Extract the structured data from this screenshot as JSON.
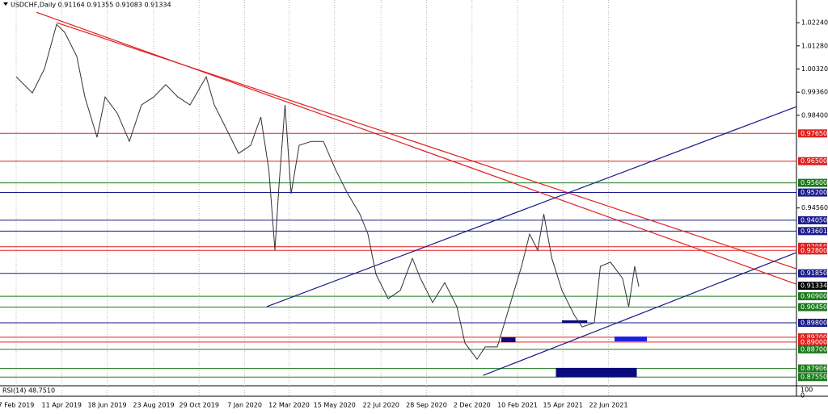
{
  "chart_data": {
    "type": "line",
    "title": "USDCHF,Daily  0.91164 0.91355 0.91083 0.91334",
    "series": [
      {
        "name": "USDCHF",
        "color": "#333333",
        "x": [
          0,
          16,
          28,
          40,
          48,
          60,
          68,
          80,
          88,
          100,
          112,
          124,
          136,
          148,
          160,
          172,
          188,
          196,
          208,
          220,
          232,
          242,
          250,
          256,
          260,
          266,
          272,
          280,
          292,
          304,
          316,
          328,
          340,
          348,
          356,
          368,
          380,
          392,
          400,
          412,
          424,
          436,
          444,
          456,
          464,
          476,
          488,
          500,
          508,
          516,
          522,
          530,
          540,
          552,
          560,
          572,
          578,
          588,
          600,
          606,
          612,
          616
        ],
        "values": [
          1.0,
          0.9933,
          1.0033,
          1.0217,
          1.0184,
          1.0084,
          0.9916,
          0.9749,
          0.9916,
          0.9849,
          0.9732,
          0.9883,
          0.9916,
          0.9967,
          0.9916,
          0.9883,
          1.0,
          0.9883,
          0.9783,
          0.9682,
          0.9716,
          0.9833,
          0.9615,
          0.9281,
          0.9548,
          0.9883,
          0.9515,
          0.9716,
          0.9732,
          0.9732,
          0.9615,
          0.9515,
          0.9431,
          0.9348,
          0.9181,
          0.908,
          0.9114,
          0.9247,
          0.9164,
          0.9064,
          0.9147,
          0.9047,
          0.8896,
          0.8829,
          0.888,
          0.888,
          0.9047,
          0.9214,
          0.9348,
          0.9281,
          0.9431,
          0.9247,
          0.9114,
          0.9013,
          0.8963,
          0.898,
          0.9214,
          0.9231,
          0.9164,
          0.9047,
          0.9214,
          0.913
        ]
      }
    ],
    "xlim": [
      -16,
      772
    ],
    "ylim": [
      0.8719,
      1.0318
    ],
    "xticks": [
      {
        "value": 0,
        "label": "7 Feb 2019"
      },
      {
        "value": 45,
        "label": "11 Apr 2019"
      },
      {
        "value": 90,
        "label": "18 Jun 2019"
      },
      {
        "value": 136,
        "label": "23 Aug 2019"
      },
      {
        "value": 181,
        "label": "29 Oct 2019"
      },
      {
        "value": 226,
        "label": "7 Jan 2020"
      },
      {
        "value": 270,
        "label": "12 Mar 2020"
      },
      {
        "value": 315,
        "label": "15 May 2020"
      },
      {
        "value": 361,
        "label": "22 Jul 2020"
      },
      {
        "value": 406,
        "label": "28 Sep 2020"
      },
      {
        "value": 451,
        "label": "2 Dec 2020"
      },
      {
        "value": 496,
        "label": "10 Feb 2021"
      },
      {
        "value": 541,
        "label": "15 Apr 2021"
      },
      {
        "value": 586,
        "label": "22 Jun 2021"
      }
    ],
    "yticks": [
      {
        "value": 1.0224,
        "label": "1.02240"
      },
      {
        "value": 1.0128,
        "label": "1.01280"
      },
      {
        "value": 1.0032,
        "label": "1.00320"
      },
      {
        "value": 0.9936,
        "label": "0.99360"
      },
      {
        "value": 0.984,
        "label": "0.98400"
      },
      {
        "value": 0.9456,
        "label": "0.94560"
      }
    ],
    "grid": true,
    "levels": [
      {
        "value": 0.9765,
        "label": "0.97650",
        "color": "#e02020"
      },
      {
        "value": 0.965,
        "label": "0.96500",
        "color": "#e02020"
      },
      {
        "value": 0.956,
        "label": "0.95600",
        "color": "#1a7a1a"
      },
      {
        "value": 0.952,
        "label": "0.95200",
        "color": "#1a1a8c"
      },
      {
        "value": 0.9405,
        "label": "0.94050",
        "color": "#1a1a8c"
      },
      {
        "value": 0.93601,
        "label": "0.93601",
        "color": "#1a1a8c"
      },
      {
        "value": 0.9295,
        "label": "0.92950",
        "color": "#e02020"
      },
      {
        "value": 0.928,
        "label": "0.92800",
        "color": "#e02020"
      },
      {
        "value": 0.9185,
        "label": "0.91850",
        "color": "#1a1a8c"
      },
      {
        "value": 0.909,
        "label": "0.90900",
        "color": "#1a7a1a"
      },
      {
        "value": 0.9045,
        "label": "0.90450",
        "color": "#1a7a1a"
      },
      {
        "value": 0.898,
        "label": "0.89800",
        "color": "#1a1a8c"
      },
      {
        "value": 0.892,
        "label": "0.89200",
        "color": "#e02020"
      },
      {
        "value": 0.89,
        "label": "0.89000",
        "color": "#e02020"
      },
      {
        "value": 0.887,
        "label": "0.88700",
        "color": "#1a7a1a"
      },
      {
        "value": 0.87906,
        "label": "0.87906",
        "color": "#1a7a1a"
      },
      {
        "value": 0.8755,
        "label": "0.87550",
        "color": "#1a7a1a"
      }
    ],
    "current_price": {
      "value": 0.91334,
      "label": "0.91334"
    },
    "trend_lines": [
      {
        "color": "#e02020",
        "x": [
          20,
          772
        ],
        "values": [
          1.0267,
          0.914
        ]
      },
      {
        "color": "#e02020",
        "x": [
          40,
          772
        ],
        "values": [
          1.0224,
          0.9204
        ]
      },
      {
        "color": "#1a1a8c",
        "x": [
          248,
          772
        ],
        "values": [
          0.9047,
          0.9876
        ]
      },
      {
        "color": "#1a1a8c",
        "x": [
          462,
          772
        ],
        "values": [
          0.8762,
          0.9271
        ]
      }
    ],
    "zones": [
      {
        "color": "#0a0a7a",
        "x": [
          534,
          614
        ],
        "values": [
          0.8793,
          0.8755
        ]
      },
      {
        "color": "#2020e0",
        "x": [
          592,
          624
        ],
        "values": [
          0.8923,
          0.8903
        ]
      },
      {
        "color": "#0a0a7a",
        "x": [
          480,
          494
        ],
        "values": [
          0.892,
          0.89
        ]
      },
      {
        "color": "#0a0a7a",
        "x": [
          540,
          565
        ],
        "values": [
          0.899,
          0.898
        ]
      }
    ],
    "rsi_label": "RSI(14) 48.7510",
    "rsi_axis_labels": [
      "100",
      "0"
    ]
  }
}
